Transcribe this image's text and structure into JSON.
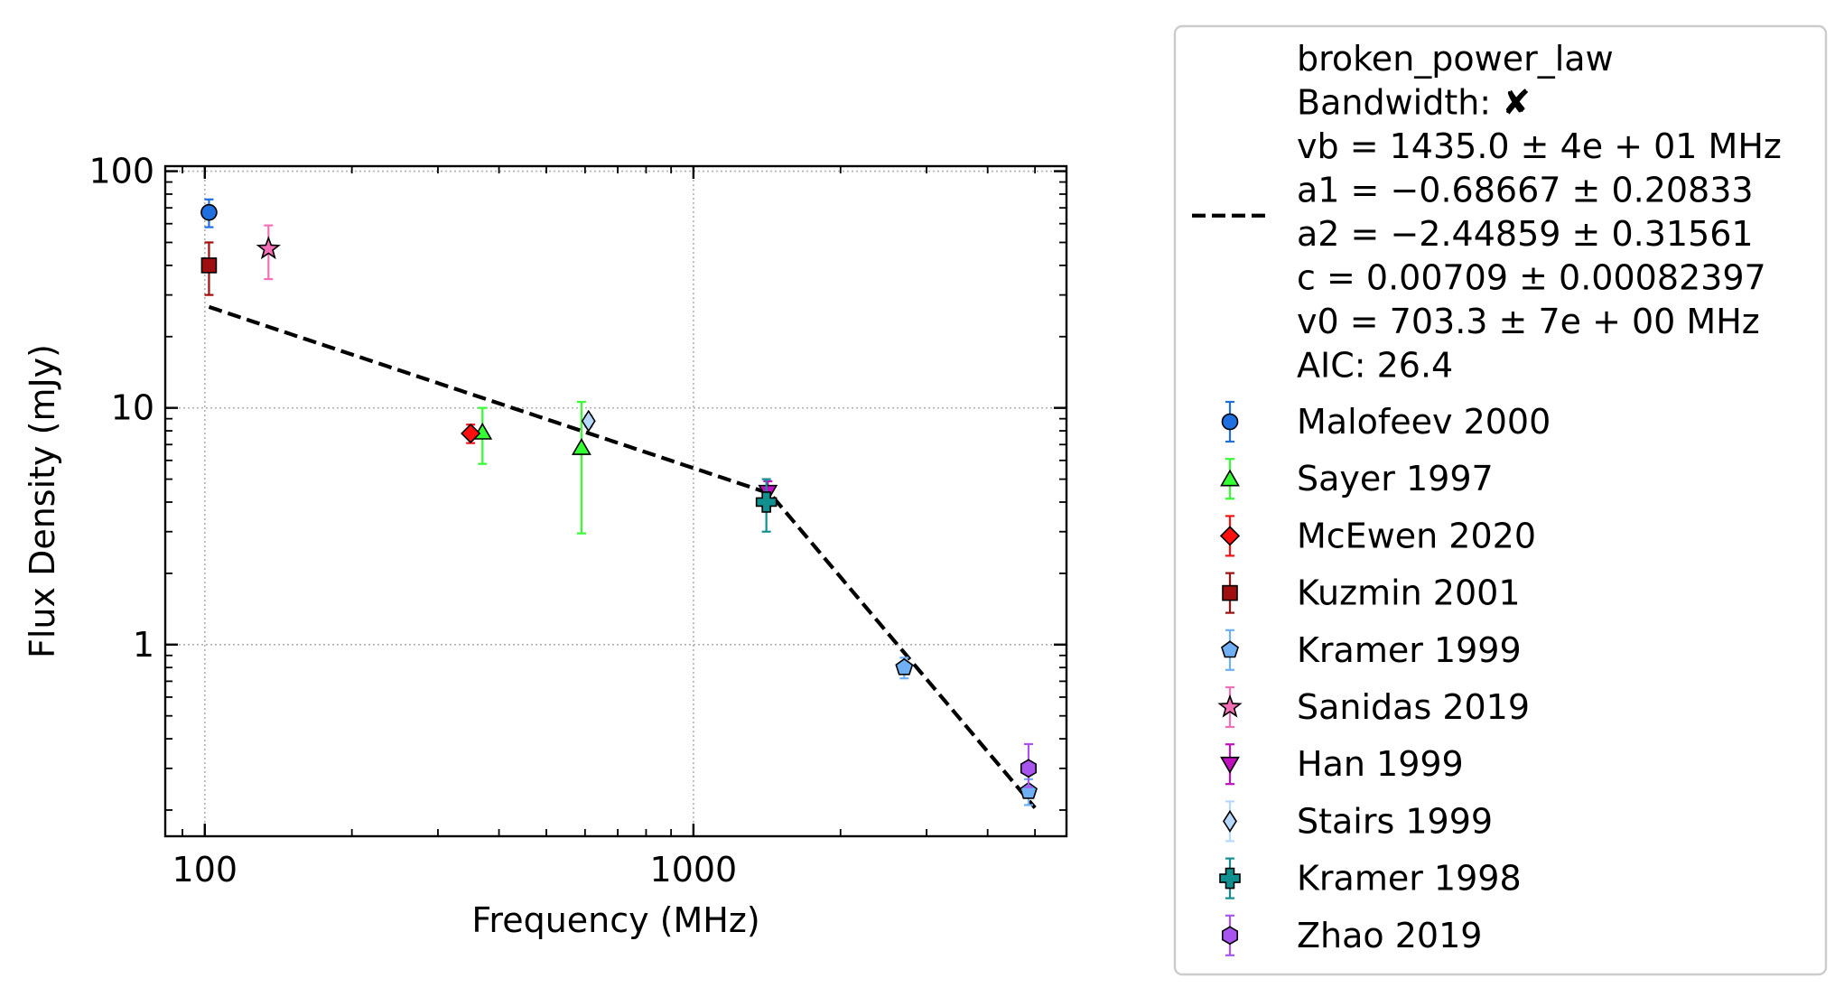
{
  "chart_data": {
    "type": "scatter",
    "xlabel": "Frequency (MHz)",
    "ylabel": "Flux Density (mJy)",
    "x_scale": "log",
    "y_scale": "log",
    "xlim": [
      83,
      5800
    ],
    "ylim": [
      0.155,
      105
    ],
    "x_ticks": [
      {
        "value": 100,
        "label": "100"
      },
      {
        "value": 1000,
        "label": "1000"
      }
    ],
    "y_ticks": [
      {
        "value": 1,
        "label": "1"
      },
      {
        "value": 10,
        "label": "10"
      },
      {
        "value": 100,
        "label": "100"
      }
    ],
    "grid": true,
    "legend_position": "outside-right",
    "fit": {
      "name": "broken_power_law",
      "lines": [
        "broken_power_law",
        "Bandwidth: ✘",
        "vb = 1435.0 ± 4e + 01 MHz",
        "a1 = −0.68667 ± 0.20833",
        "a2 = −2.44859 ± 0.31561",
        "c = 0.00709 ± 0.00082397",
        "v0 = 703.3 ± 7e + 00 MHz",
        "AIC: 26.4"
      ],
      "vb": 1435.0,
      "a1": -0.68667,
      "a2": -2.44859,
      "c": 0.00709,
      "v0": 703.3,
      "x_range": [
        102,
        5000
      ],
      "color": "#000000"
    },
    "series": [
      {
        "name": "Malofeev 2000",
        "marker": "circle",
        "color": "#1f6fe0",
        "points": [
          {
            "x": 102,
            "y": 67,
            "yerr": [
              58,
              76
            ]
          }
        ]
      },
      {
        "name": "Sayer 1997",
        "marker": "triangle-up",
        "color": "#33ff33",
        "points": [
          {
            "x": 370,
            "y": 7.9,
            "yerr": [
              5.8,
              10
            ]
          },
          {
            "x": 590,
            "y": 6.8,
            "yerr": [
              2.95,
              10.6
            ]
          }
        ]
      },
      {
        "name": "McEwen 2020",
        "marker": "diamond",
        "color": "#ff1010",
        "points": [
          {
            "x": 350,
            "y": 7.8,
            "yerr": [
              7.1,
              8.5
            ]
          }
        ]
      },
      {
        "name": "Kuzmin 2001",
        "marker": "square",
        "color": "#a00f0f",
        "points": [
          {
            "x": 102,
            "y": 40,
            "yerr": [
              30,
              50
            ]
          }
        ]
      },
      {
        "name": "Kramer 1999",
        "marker": "pentagon",
        "color": "#6fb0f5",
        "points": [
          {
            "x": 2700,
            "y": 0.8,
            "yerr": [
              0.72,
              0.88
            ]
          },
          {
            "x": 4850,
            "y": 0.24,
            "yerr": [
              0.21,
              0.27
            ]
          }
        ]
      },
      {
        "name": "Sanidas 2019",
        "marker": "star",
        "color": "#f56fb6",
        "points": [
          {
            "x": 135,
            "y": 47,
            "yerr": [
              35,
              59
            ]
          }
        ]
      },
      {
        "name": "Han 1999",
        "marker": "triangle-down",
        "color": "#c010c0",
        "points": [
          {
            "x": 1420,
            "y": 4.4,
            "yerr": [
              3.9,
              4.9
            ]
          }
        ]
      },
      {
        "name": "Stairs 1999",
        "marker": "thin-diamond",
        "color": "#b6d8ff",
        "points": [
          {
            "x": 610,
            "y": 8.8,
            "yerr": [
              8.3,
              9.3
            ]
          }
        ]
      },
      {
        "name": "Kramer 1998",
        "marker": "plus",
        "color": "#119090",
        "points": [
          {
            "x": 1410,
            "y": 4.0,
            "yerr": [
              3.0,
              5.0
            ]
          }
        ]
      },
      {
        "name": "Zhao 2019",
        "marker": "hexagon",
        "color": "#a855f0",
        "points": [
          {
            "x": 4850,
            "y": 0.3,
            "yerr": [
              0.25,
              0.38
            ]
          }
        ]
      }
    ]
  }
}
